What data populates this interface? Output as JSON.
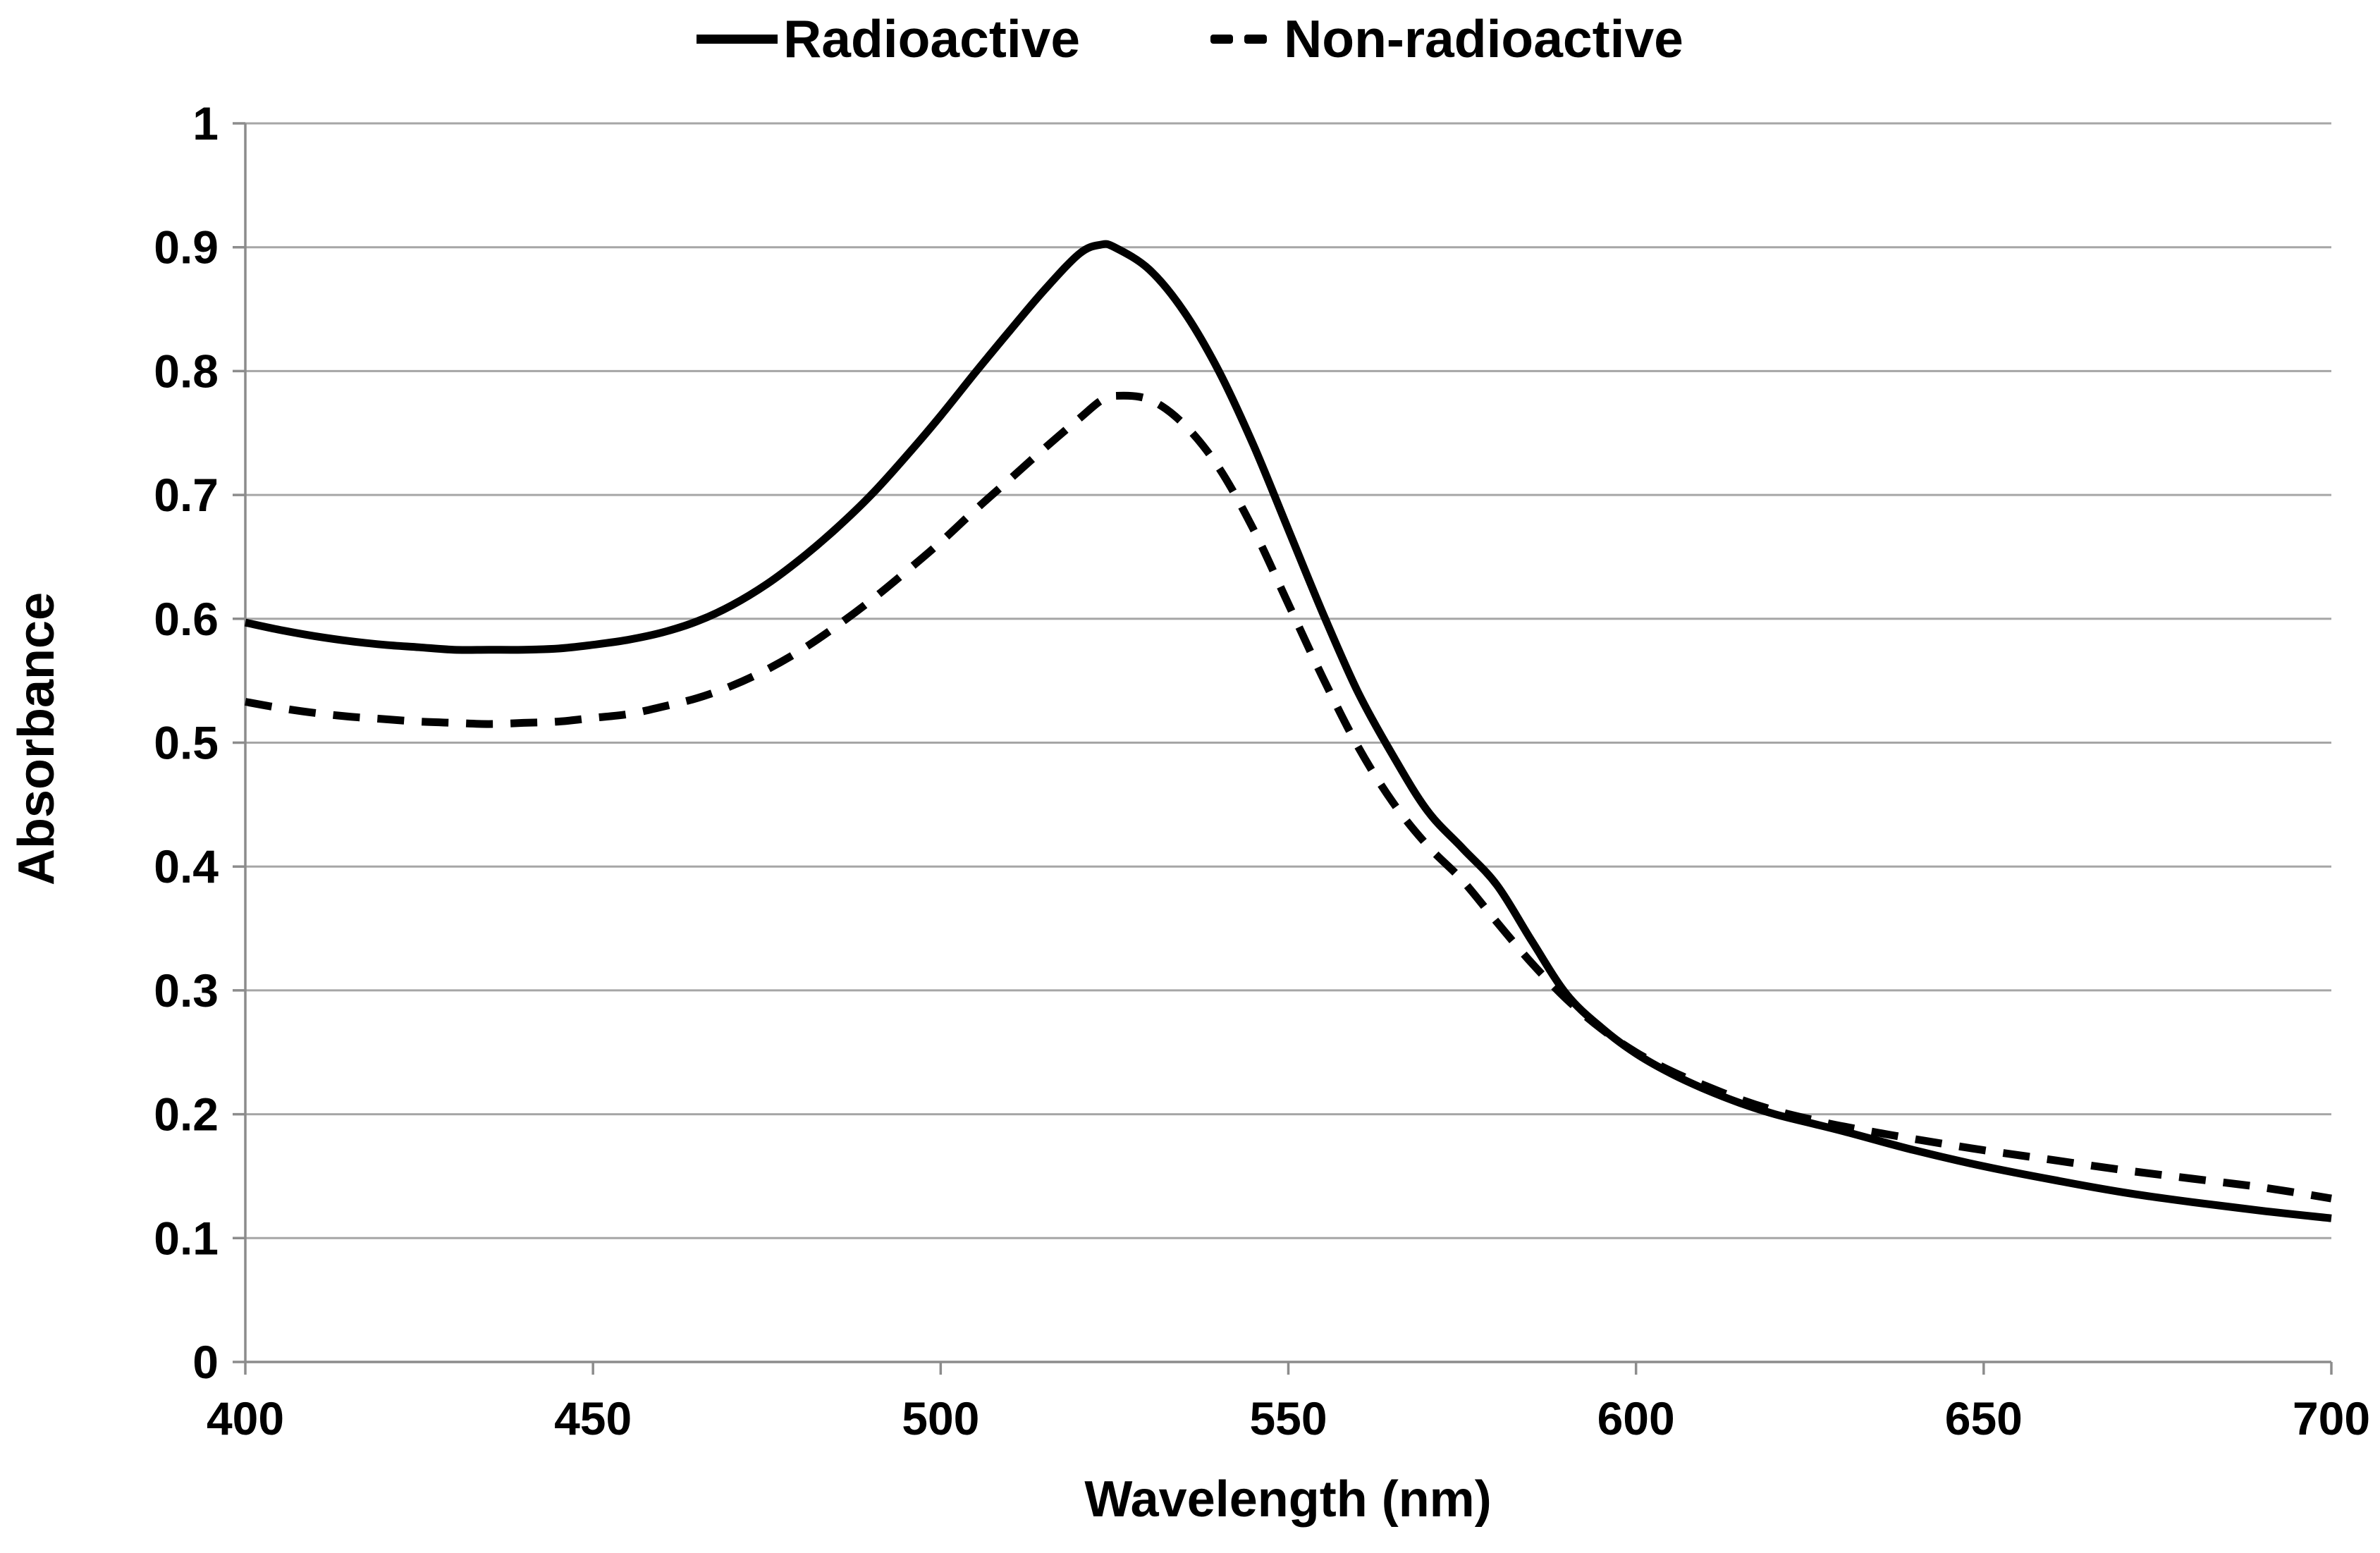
{
  "colors": {
    "curve": "#000000",
    "gridline": "#a6a6a6",
    "axis": "#8c8c8c",
    "text": "#000000",
    "background": "#ffffff"
  },
  "chart_data": {
    "type": "line",
    "title": "",
    "xlabel": "Wavelength (nm)",
    "ylabel": "Absorbance",
    "xlim": [
      400,
      700
    ],
    "ylim": [
      0,
      1
    ],
    "x_ticks": [
      400,
      450,
      500,
      550,
      600,
      650,
      700
    ],
    "y_ticks": [
      0,
      0.1,
      0.2,
      0.3,
      0.4,
      0.5,
      0.6,
      0.7,
      0.8,
      0.9,
      1
    ],
    "y_tick_labels": [
      "0",
      "0.1",
      "0.2",
      "0.3",
      "0.4",
      "0.5",
      "0.6",
      "0.7",
      "0.8",
      "0.9",
      "1"
    ],
    "grid": "horizontal",
    "legend_position": "top-center",
    "series": [
      {
        "name": "Radioactive",
        "style": "solid",
        "color": "#000000",
        "x": [
          400,
          405,
          410,
          415,
          420,
          425,
          430,
          435,
          440,
          445,
          450,
          455,
          460,
          465,
          470,
          475,
          480,
          485,
          490,
          495,
          500,
          505,
          510,
          515,
          520,
          523,
          525,
          530,
          535,
          540,
          545,
          550,
          555,
          560,
          565,
          570,
          575,
          580,
          585,
          590,
          595,
          600,
          605,
          610,
          615,
          620,
          625,
          630,
          640,
          650,
          660,
          670,
          680,
          690,
          700
        ],
        "y": [
          0.597,
          0.591,
          0.586,
          0.582,
          0.579,
          0.577,
          0.575,
          0.575,
          0.575,
          0.576,
          0.579,
          0.583,
          0.589,
          0.598,
          0.611,
          0.628,
          0.649,
          0.673,
          0.7,
          0.731,
          0.764,
          0.799,
          0.833,
          0.866,
          0.895,
          0.902,
          0.9,
          0.882,
          0.848,
          0.8,
          0.74,
          0.672,
          0.604,
          0.541,
          0.49,
          0.445,
          0.415,
          0.385,
          0.34,
          0.297,
          0.27,
          0.249,
          0.233,
          0.22,
          0.209,
          0.2,
          0.193,
          0.186,
          0.171,
          0.158,
          0.147,
          0.137,
          0.129,
          0.122,
          0.116
        ]
      },
      {
        "name": "Non-radioactive",
        "style": "dashed",
        "color": "#000000",
        "x": [
          400,
          405,
          410,
          415,
          420,
          425,
          430,
          435,
          440,
          445,
          450,
          455,
          460,
          465,
          470,
          475,
          480,
          485,
          490,
          495,
          500,
          505,
          510,
          515,
          520,
          523,
          525,
          530,
          535,
          540,
          545,
          550,
          555,
          560,
          565,
          570,
          575,
          580,
          585,
          590,
          595,
          600,
          605,
          610,
          615,
          620,
          625,
          630,
          640,
          650,
          660,
          670,
          680,
          690,
          700
        ],
        "y": [
          0.533,
          0.528,
          0.524,
          0.521,
          0.519,
          0.517,
          0.516,
          0.515,
          0.516,
          0.517,
          0.52,
          0.523,
          0.529,
          0.536,
          0.546,
          0.559,
          0.575,
          0.594,
          0.615,
          0.638,
          0.662,
          0.688,
          0.713,
          0.738,
          0.762,
          0.776,
          0.78,
          0.777,
          0.757,
          0.722,
          0.672,
          0.612,
          0.552,
          0.497,
          0.452,
          0.417,
          0.389,
          0.355,
          0.322,
          0.293,
          0.269,
          0.25,
          0.235,
          0.223,
          0.212,
          0.203,
          0.196,
          0.19,
          0.18,
          0.171,
          0.163,
          0.155,
          0.148,
          0.141,
          0.132
        ]
      }
    ],
    "peak_annotations": {
      "radioactive_peak": "0.90 @ ~521 nm",
      "non_radioactive_peak": "0.78 @ ~524 nm"
    }
  }
}
